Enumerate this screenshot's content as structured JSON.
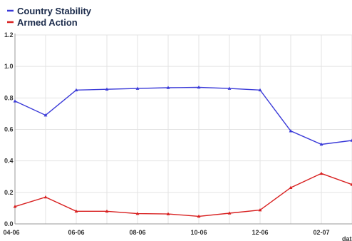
{
  "chart_data": {
    "type": "line",
    "x": [
      "04-06",
      "05-06",
      "06-06",
      "07-06",
      "08-06",
      "09-06",
      "10-06",
      "11-06",
      "12-06",
      "01-07",
      "02-07",
      "03-07"
    ],
    "x_tick_labels": [
      "04-06",
      "06-06",
      "08-06",
      "10-06",
      "12-06",
      "02-07"
    ],
    "x_axis_label_visible": "date",
    "y_tick_labels": [
      "0.0",
      "0.2",
      "0.4",
      "0.6",
      "0.8",
      "1.0",
      "1.2"
    ],
    "ylim": [
      0,
      1.2
    ],
    "grid": true,
    "legend_placement": "top-left",
    "series": [
      {
        "name": "Country Stability",
        "color": "#3a3ad8",
        "values": [
          0.78,
          0.69,
          0.85,
          0.855,
          0.86,
          0.865,
          0.867,
          0.86,
          0.85,
          0.59,
          0.505,
          0.53
        ]
      },
      {
        "name": "Armed Action",
        "color": "#d82020",
        "values": [
          0.11,
          0.17,
          0.08,
          0.08,
          0.065,
          0.063,
          0.048,
          0.068,
          0.088,
          0.23,
          0.32,
          0.25
        ]
      }
    ]
  }
}
